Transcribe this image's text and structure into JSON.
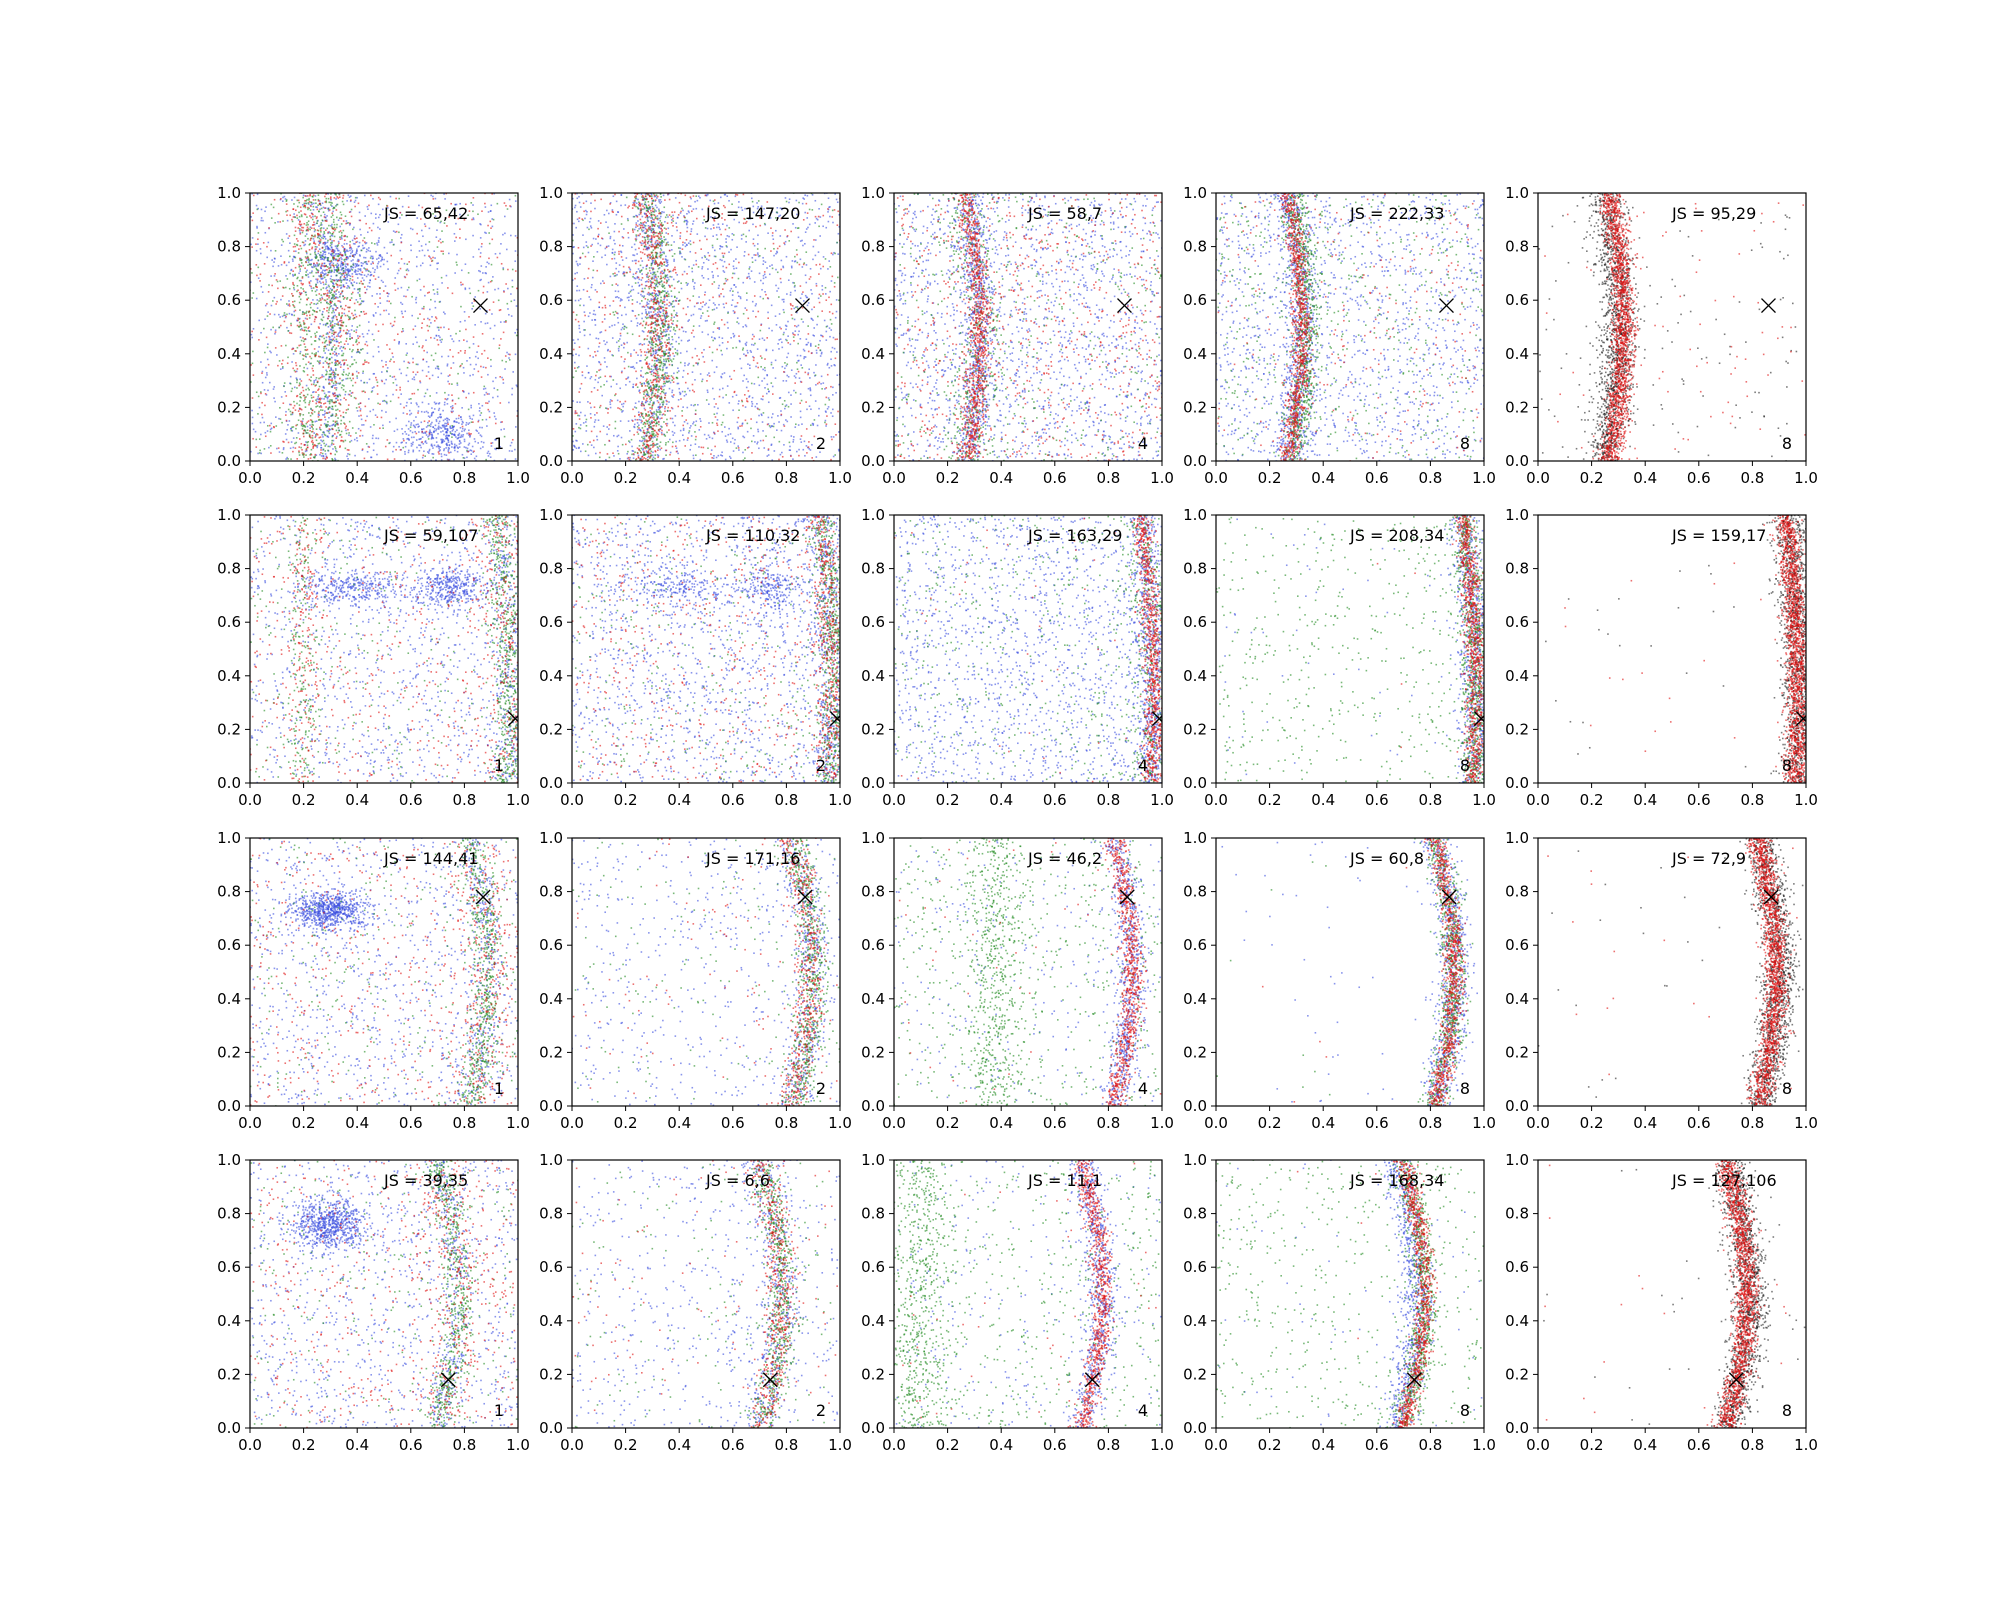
{
  "colors": {
    "blue": "#3b4fe0",
    "green": "#1f8a1f",
    "red": "#e01010",
    "black": "#111111"
  },
  "chart_data": {
    "type": "scatter",
    "layout": "4x5 grid of scatter panels",
    "xlim": [
      0,
      1
    ],
    "ylim": [
      0,
      1
    ],
    "x_ticks": [
      "0.0",
      "0.2",
      "0.4",
      "0.6",
      "0.8",
      "1.0"
    ],
    "y_ticks": [
      "0.0",
      "0.2",
      "0.4",
      "0.6",
      "0.8",
      "1.0"
    ],
    "grid": false,
    "marker": {
      "shape": "x",
      "color": "black"
    },
    "rows": [
      {
        "marker_point": {
          "x": 0.86,
          "y": 0.58
        },
        "panels": [
          {
            "js_label": "JS = 65,42",
            "n": "1",
            "series": [
              "blue",
              "green",
              "red"
            ]
          },
          {
            "js_label": "JS = 147,20",
            "n": "2",
            "series": [
              "blue",
              "green",
              "red"
            ]
          },
          {
            "js_label": "JS = 58,7",
            "n": "4",
            "series": [
              "blue",
              "green",
              "red"
            ]
          },
          {
            "js_label": "JS = 222,33",
            "n": "8",
            "series": [
              "blue",
              "green",
              "red"
            ]
          },
          {
            "js_label": "JS = 95,29",
            "n": "8",
            "series": [
              "black",
              "red"
            ]
          }
        ]
      },
      {
        "marker_point": {
          "x": 0.99,
          "y": 0.24
        },
        "panels": [
          {
            "js_label": "JS = 59,107",
            "n": "1",
            "series": [
              "blue",
              "green",
              "red"
            ]
          },
          {
            "js_label": "JS = 110,32",
            "n": "2",
            "series": [
              "blue",
              "green",
              "red"
            ]
          },
          {
            "js_label": "JS = 163,29",
            "n": "4",
            "series": [
              "blue",
              "green",
              "red"
            ]
          },
          {
            "js_label": "JS = 208,34",
            "n": "8",
            "series": [
              "blue",
              "green",
              "red"
            ]
          },
          {
            "js_label": "JS = 159,17",
            "n": "8",
            "series": [
              "black",
              "red"
            ]
          }
        ]
      },
      {
        "marker_point": {
          "x": 0.87,
          "y": 0.78
        },
        "panels": [
          {
            "js_label": "JS = 144,41",
            "n": "1",
            "series": [
              "blue",
              "green",
              "red"
            ]
          },
          {
            "js_label": "JS = 171,16",
            "n": "2",
            "series": [
              "blue",
              "green",
              "red"
            ]
          },
          {
            "js_label": "JS = 46,2",
            "n": "4",
            "series": [
              "blue",
              "green",
              "red"
            ]
          },
          {
            "js_label": "JS = 60,8",
            "n": "8",
            "series": [
              "blue",
              "green",
              "red"
            ]
          },
          {
            "js_label": "JS = 72,9",
            "n": "8",
            "series": [
              "black",
              "red"
            ]
          }
        ]
      },
      {
        "marker_point": {
          "x": 0.74,
          "y": 0.18
        },
        "panels": [
          {
            "js_label": "JS = 39,35",
            "n": "1",
            "series": [
              "blue",
              "green",
              "red"
            ]
          },
          {
            "js_label": "JS = 6,6",
            "n": "2",
            "series": [
              "blue",
              "green",
              "red"
            ]
          },
          {
            "js_label": "JS = 11,1",
            "n": "4",
            "series": [
              "blue",
              "green",
              "red"
            ]
          },
          {
            "js_label": "JS = 168,34",
            "n": "8",
            "series": [
              "blue",
              "green",
              "red"
            ]
          },
          {
            "js_label": "JS = 127,106",
            "n": "8",
            "series": [
              "black",
              "red"
            ]
          }
        ]
      }
    ]
  }
}
